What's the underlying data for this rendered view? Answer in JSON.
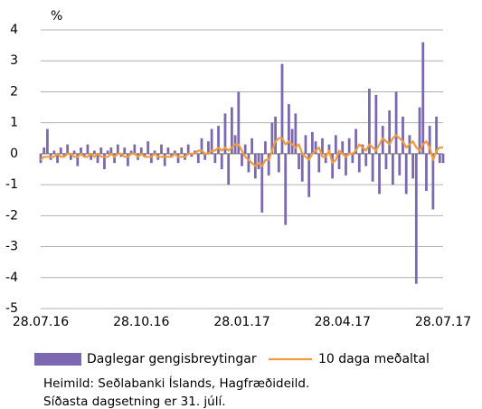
{
  "chart_data": {
    "type": "bar_line",
    "ylabel": "%",
    "categories": [
      "28.07.16",
      null,
      null,
      null,
      null,
      null,
      null,
      null,
      null,
      null,
      null,
      null,
      null,
      null,
      null,
      null,
      null,
      null,
      null,
      null,
      null,
      null,
      null,
      null,
      null,
      null,
      null,
      null,
      null,
      null,
      "28.10.16",
      null,
      null,
      null,
      null,
      null,
      null,
      null,
      null,
      null,
      null,
      null,
      null,
      null,
      null,
      null,
      null,
      null,
      null,
      null,
      null,
      null,
      null,
      null,
      null,
      null,
      null,
      null,
      null,
      null,
      "28.01.17",
      null,
      null,
      null,
      null,
      null,
      null,
      null,
      null,
      null,
      null,
      null,
      null,
      null,
      null,
      null,
      null,
      null,
      null,
      null,
      null,
      null,
      null,
      null,
      null,
      null,
      null,
      null,
      null,
      null,
      "28.04.17",
      null,
      null,
      null,
      null,
      null,
      null,
      null,
      null,
      null,
      null,
      null,
      null,
      null,
      null,
      null,
      null,
      null,
      null,
      null,
      null,
      null,
      null,
      null,
      null,
      null,
      null,
      null,
      null,
      null,
      "28.07.17"
    ],
    "series": [
      {
        "name": "Daglegar gengisbreytingar",
        "type": "bar",
        "color": "#7b68b0",
        "values": [
          -0.3,
          0.2,
          0.8,
          -0.2,
          0.1,
          -0.3,
          0.2,
          -0.1,
          0.3,
          -0.2,
          0.1,
          -0.4,
          0.2,
          -0.1,
          0.3,
          -0.2,
          0.1,
          -0.3,
          0.2,
          -0.5,
          0.1,
          0.2,
          -0.3,
          0.3,
          -0.1,
          0.2,
          -0.4,
          0.1,
          0.3,
          -0.2,
          0.2,
          -0.1,
          0.4,
          -0.3,
          0.1,
          -0.2,
          0.3,
          -0.4,
          0.2,
          -0.1,
          0.1,
          -0.3,
          0.2,
          -0.2,
          0.3,
          -0.1,
          0.1,
          -0.3,
          0.5,
          -0.2,
          0.4,
          0.8,
          -0.3,
          0.9,
          -0.5,
          1.3,
          -1.0,
          1.5,
          0.6,
          2.0,
          -0.4,
          0.3,
          -0.6,
          0.5,
          -0.8,
          -0.5,
          -1.9,
          0.4,
          -0.7,
          1.0,
          1.2,
          -0.6,
          2.9,
          -2.3,
          1.6,
          0.8,
          1.3,
          -0.5,
          -0.9,
          0.6,
          -1.4,
          0.7,
          0.4,
          -0.6,
          0.5,
          -0.3,
          0.3,
          -0.8,
          0.6,
          -0.5,
          0.4,
          -0.7,
          0.5,
          -0.3,
          0.8,
          -0.6,
          0.3,
          -0.4,
          2.1,
          -0.9,
          1.9,
          -1.3,
          0.9,
          -0.5,
          1.4,
          -1.0,
          2.0,
          -0.7,
          1.2,
          -1.3,
          0.6,
          -0.8,
          -4.2,
          1.5,
          3.6,
          -1.2,
          0.9,
          -1.8,
          1.2,
          -0.3,
          -0.3
        ]
      },
      {
        "name": "10 daga meðaltal",
        "type": "line",
        "color": "#f39a3c",
        "values": [
          -0.2,
          -0.1,
          -0.1,
          -0.1,
          -0.1,
          0,
          -0.1,
          -0.1,
          0,
          0,
          -0.1,
          -0.1,
          0,
          -0.1,
          -0.1,
          0,
          -0.1,
          0,
          -0.1,
          -0.1,
          -0.1,
          0,
          -0.1,
          0,
          0,
          -0.1,
          -0.1,
          0,
          0,
          -0.1,
          0,
          -0.1,
          -0.1,
          -0.1,
          0,
          -0.1,
          -0.1,
          -0.1,
          -0.1,
          -0.1,
          0,
          -0.1,
          -0.1,
          -0.1,
          0,
          0,
          0,
          0.1,
          0.1,
          0,
          0,
          0.1,
          0.1,
          0.2,
          0.1,
          0.2,
          0.1,
          0.2,
          0.3,
          0.3,
          0.1,
          -0.1,
          -0.2,
          -0.3,
          -0.4,
          -0.3,
          -0.4,
          -0.2,
          -0.2,
          0.1,
          0.4,
          0.5,
          0.5,
          0.3,
          0.4,
          0.3,
          0.2,
          0.3,
          0,
          -0.1,
          -0.2,
          0,
          0.1,
          0.2,
          -0.1,
          -0.1,
          0.1,
          -0.3,
          -0.2,
          0.1,
          0,
          -0.1,
          0,
          0,
          0.1,
          0.3,
          0.2,
          0.1,
          0.3,
          0.2,
          0.1,
          0.3,
          0.5,
          0.4,
          0.3,
          0.5,
          0.6,
          0.5,
          0.4,
          0.2,
          0.3,
          0.4,
          0.2,
          0.1,
          0.3,
          0.4,
          0.2,
          -0.2,
          0.1,
          0.2,
          0.2
        ]
      }
    ],
    "ylim": [
      -5,
      4
    ],
    "yticks": [
      -5,
      -4,
      -3,
      -2,
      -1,
      0,
      1,
      2,
      3,
      4
    ],
    "grid": true,
    "source": [
      "Heimild: Seðlabanki Íslands, Hagfræðideild.",
      "Síðasta dagsetning er 31. júlí."
    ]
  }
}
